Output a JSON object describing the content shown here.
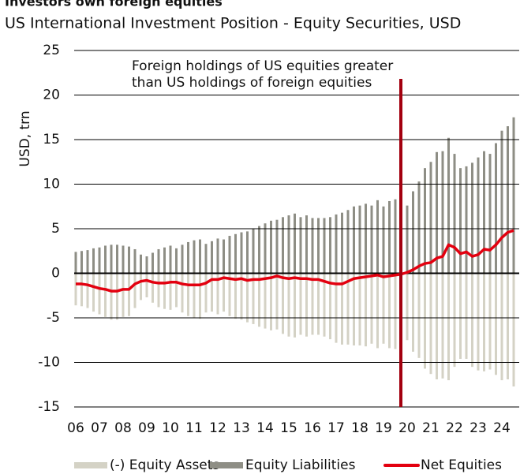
{
  "chart_data": {
    "type": "bar",
    "title": "Investors own foreign equities",
    "subtitle": "US International Investment Position - Equity Securities, USD",
    "y_label": "USD, trn",
    "annotation": [
      "Foreign holdings of US equities greater",
      "than US holdings of foreign equities"
    ],
    "categories": [
      "06",
      null,
      null,
      null,
      "07",
      null,
      null,
      null,
      "08",
      null,
      null,
      null,
      "09",
      null,
      null,
      null,
      "10",
      null,
      null,
      null,
      "11",
      null,
      null,
      null,
      "12",
      null,
      null,
      null,
      "13",
      null,
      null,
      null,
      "14",
      null,
      null,
      null,
      "15",
      null,
      null,
      null,
      "16",
      null,
      null,
      null,
      "17",
      null,
      null,
      null,
      "18",
      null,
      null,
      null,
      "19",
      null,
      null,
      null,
      "20",
      null,
      null,
      null,
      "21",
      null,
      null,
      null,
      "22",
      null,
      null,
      null,
      "23",
      null,
      null,
      null,
      "24",
      null,
      null
    ],
    "series": [
      {
        "name": "(-) Equity Assets",
        "type": "bar",
        "color": "#d4d2c5",
        "values": [
          -3.6,
          -3.7,
          -3.9,
          -4.3,
          -4.6,
          -4.9,
          -5.2,
          -5.2,
          -4.9,
          -4.8,
          -3.9,
          -3.0,
          -2.7,
          -3.3,
          -3.8,
          -4.0,
          -4.1,
          -3.8,
          -4.4,
          -4.8,
          -5.0,
          -5.1,
          -4.4,
          -4.3,
          -4.6,
          -4.3,
          -4.8,
          -5.1,
          -5.2,
          -5.5,
          -5.7,
          -6.0,
          -6.2,
          -6.4,
          -6.3,
          -6.8,
          -7.1,
          -7.2,
          -6.9,
          -7.1,
          -6.9,
          -6.9,
          -7.1,
          -7.4,
          -7.8,
          -8.0,
          -8.0,
          -8.1,
          -8.1,
          -8.2,
          -7.9,
          -8.4,
          -7.9,
          -8.4,
          -8.5,
          -8.8,
          -7.5,
          -8.8,
          -9.5,
          -10.7,
          -11.3,
          -11.9,
          -11.8,
          -12.0,
          -10.5,
          -9.6,
          -9.6,
          -10.5,
          -10.9,
          -11.0,
          -10.8,
          -11.4,
          -12.0,
          -11.9,
          -12.7
        ]
      },
      {
        "name": "Equity Liabilities",
        "type": "bar",
        "color": "#8e8e85",
        "values": [
          2.4,
          2.5,
          2.6,
          2.8,
          2.9,
          3.1,
          3.2,
          3.2,
          3.1,
          3.0,
          2.7,
          2.1,
          1.9,
          2.3,
          2.7,
          2.9,
          3.1,
          2.8,
          3.2,
          3.5,
          3.7,
          3.8,
          3.3,
          3.6,
          3.9,
          3.8,
          4.2,
          4.4,
          4.6,
          4.7,
          5.0,
          5.3,
          5.6,
          5.9,
          6.0,
          6.3,
          6.5,
          6.7,
          6.3,
          6.5,
          6.2,
          6.2,
          6.2,
          6.3,
          6.6,
          6.8,
          7.1,
          7.5,
          7.6,
          7.8,
          7.6,
          8.2,
          7.5,
          8.1,
          8.3,
          8.7,
          7.6,
          9.2,
          10.3,
          11.8,
          12.5,
          13.6,
          13.7,
          15.2,
          13.4,
          11.8,
          12.0,
          12.4,
          13.0,
          13.7,
          13.4,
          14.6,
          16.0,
          16.5,
          17.5
        ]
      },
      {
        "name": "Net Equities",
        "type": "line",
        "color": "#e3000f",
        "values": [
          -1.2,
          -1.2,
          -1.3,
          -1.5,
          -1.7,
          -1.8,
          -2.0,
          -2.0,
          -1.8,
          -1.8,
          -1.2,
          -0.9,
          -0.8,
          -1.0,
          -1.1,
          -1.1,
          -1.0,
          -1.0,
          -1.2,
          -1.3,
          -1.3,
          -1.3,
          -1.1,
          -0.7,
          -0.7,
          -0.5,
          -0.6,
          -0.7,
          -0.6,
          -0.8,
          -0.7,
          -0.7,
          -0.6,
          -0.5,
          -0.3,
          -0.5,
          -0.6,
          -0.5,
          -0.6,
          -0.6,
          -0.7,
          -0.7,
          -0.9,
          -1.1,
          -1.2,
          -1.2,
          -0.9,
          -0.6,
          -0.5,
          -0.4,
          -0.3,
          -0.2,
          -0.4,
          -0.3,
          -0.2,
          -0.1,
          0.1,
          0.4,
          0.8,
          1.1,
          1.2,
          1.7,
          1.9,
          3.2,
          2.9,
          2.2,
          2.4,
          1.9,
          2.1,
          2.7,
          2.6,
          3.2,
          4.0,
          4.6,
          4.8
        ]
      }
    ],
    "ylim": [
      -15,
      25
    ],
    "yticks": [
      -15,
      -10,
      -5,
      0,
      5,
      10,
      15,
      20,
      25
    ],
    "grid": true,
    "legend": "bottom"
  }
}
